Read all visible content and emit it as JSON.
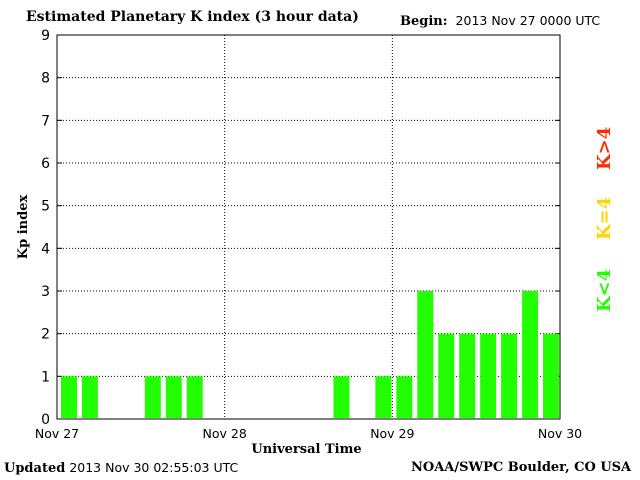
{
  "header": {
    "title": "Estimated Planetary K index (3 hour data)",
    "begin_label": "Begin:",
    "begin_value": "2013 Nov 27 0000 UTC"
  },
  "footer": {
    "updated_label": "Updated",
    "updated_value": "2013 Nov 30 02:55:03 UTC",
    "source": "NOAA/SWPC Boulder, CO USA"
  },
  "legend": [
    {
      "label": "K>4",
      "color": "#ff2a00"
    },
    {
      "label": "K=4",
      "color": "#ffd400"
    },
    {
      "label": "K<4",
      "color": "#22ff00"
    }
  ],
  "chart_data": {
    "type": "bar",
    "title": "Estimated Planetary K index (3 hour data)",
    "xlabel": "Universal Time",
    "ylabel": "Kp index",
    "ylim": [
      0,
      9
    ],
    "yticks": [
      0,
      1,
      2,
      3,
      4,
      5,
      6,
      7,
      8,
      9
    ],
    "xticks": [
      "Nov 27",
      "Nov 28",
      "Nov 29",
      "Nov 30"
    ],
    "grid": true,
    "interval_hours": 3,
    "bar_color": "#22ff00",
    "values": [
      1,
      1,
      null,
      null,
      1,
      1,
      1,
      null,
      null,
      null,
      null,
      null,
      null,
      1,
      null,
      1,
      1,
      3,
      2,
      2,
      2,
      2,
      3,
      2
    ]
  }
}
